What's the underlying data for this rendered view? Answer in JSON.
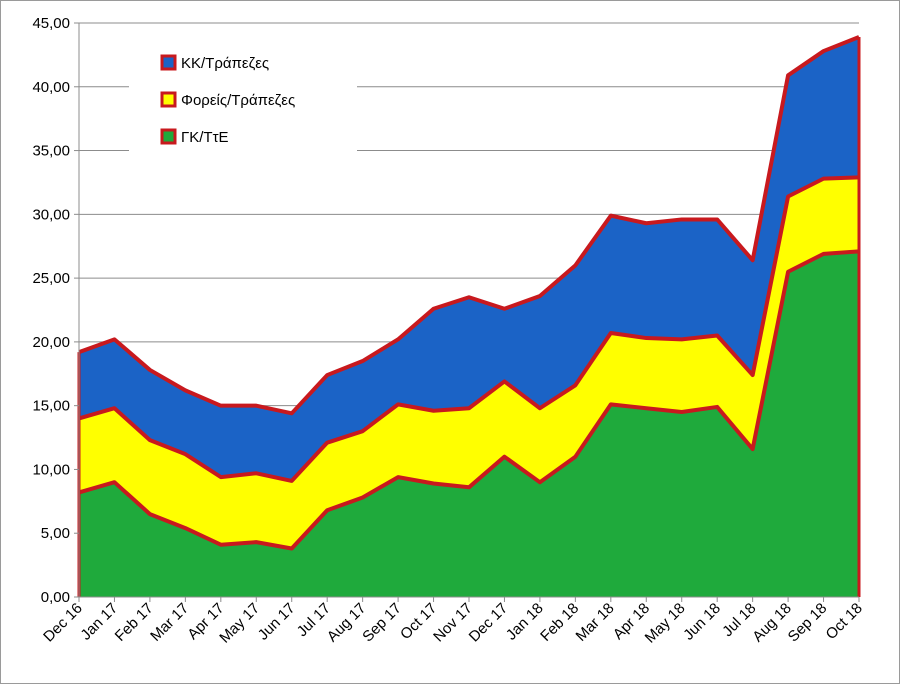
{
  "chart_data": {
    "type": "area",
    "stacked": true,
    "categories": [
      "Dec 16",
      "Jan 17",
      "Feb 17",
      "Mar 17",
      "Apr 17",
      "May 17",
      "Jun 17",
      "Jul 17",
      "Aug 17",
      "Sep 17",
      "Oct 17",
      "Nov 17",
      "Dec 17",
      "Jan 18",
      "Feb 18",
      "Mar 18",
      "Apr 18",
      "May 18",
      "Jun 18",
      "Jul 18",
      "Aug 18",
      "Sep 18",
      "Oct 18"
    ],
    "series": [
      {
        "name": "ΓΚ/ΤτΕ",
        "color": "#1faa3c",
        "values": [
          8.2,
          9.0,
          6.5,
          5.4,
          4.1,
          4.3,
          3.8,
          6.8,
          7.8,
          9.4,
          8.9,
          8.6,
          11.0,
          9.0,
          11.0,
          15.1,
          14.8,
          14.5,
          14.9,
          11.6,
          25.5,
          26.9,
          27.1
        ]
      },
      {
        "name": "Φορείς/Τράπεζες",
        "color": "#ffff00",
        "values": [
          5.8,
          5.8,
          5.8,
          5.8,
          5.3,
          5.4,
          5.3,
          5.3,
          5.2,
          5.7,
          5.7,
          6.2,
          5.9,
          5.8,
          5.6,
          5.6,
          5.5,
          5.7,
          5.6,
          5.8,
          5.9,
          5.9,
          5.8
        ]
      },
      {
        "name": "ΚΚ/Τράπεζες",
        "color": "#1b63c6",
        "values": [
          5.2,
          5.4,
          5.5,
          5.0,
          5.6,
          5.3,
          5.3,
          5.3,
          5.5,
          5.1,
          8.0,
          8.7,
          5.7,
          8.8,
          9.4,
          9.2,
          9.0,
          9.4,
          9.1,
          9.0,
          9.5,
          10.0,
          11.0
        ]
      }
    ],
    "ylim": [
      0,
      45
    ],
    "yticks": [
      "0,00",
      "5,00",
      "10,00",
      "15,00",
      "20,00",
      "25,00",
      "30,00",
      "35,00",
      "40,00",
      "45,00"
    ],
    "grid": true,
    "outline_color": "#c8191e",
    "legend_position": "top-left",
    "legend_order": [
      "ΚΚ/Τράπεζες",
      "Φορείς/Τράπεζες",
      "ΓΚ/ΤτΕ"
    ],
    "title": "",
    "xlabel": "",
    "ylabel": ""
  }
}
